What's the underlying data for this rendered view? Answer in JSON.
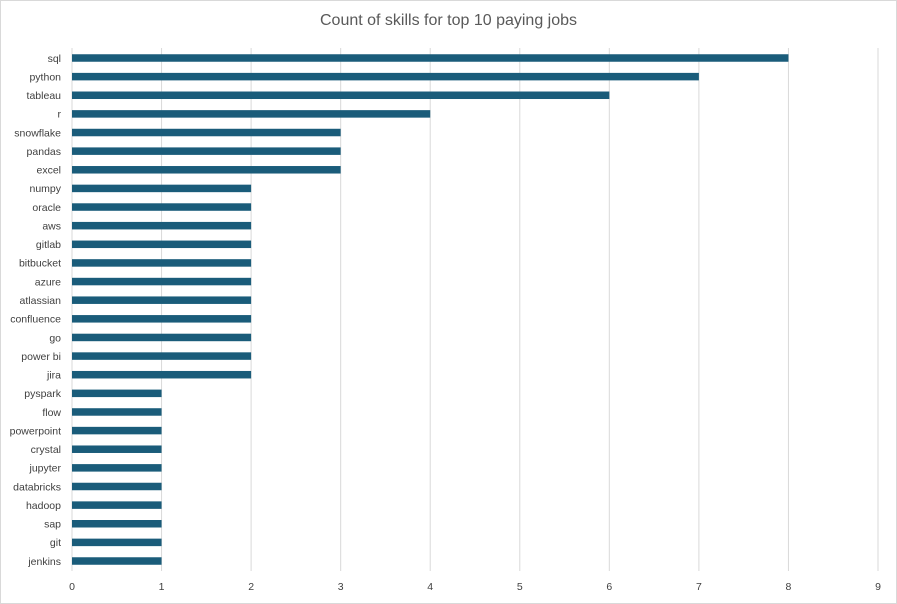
{
  "chart_data": {
    "type": "bar",
    "orientation": "horizontal",
    "title": "Count of skills for top 10 paying jobs",
    "categories": [
      "sql",
      "python",
      "tableau",
      "r",
      "snowflake",
      "pandas",
      "excel",
      "numpy",
      "oracle",
      "aws",
      "gitlab",
      "bitbucket",
      "azure",
      "atlassian",
      "confluence",
      "go",
      "power bi",
      "jira",
      "pyspark",
      "flow",
      "powerpoint",
      "crystal",
      "jupyter",
      "databricks",
      "hadoop",
      "sap",
      "git",
      "jenkins"
    ],
    "values": [
      8,
      7,
      6,
      4,
      3,
      3,
      3,
      2,
      2,
      2,
      2,
      2,
      2,
      2,
      2,
      2,
      2,
      2,
      1,
      1,
      1,
      1,
      1,
      1,
      1,
      1,
      1,
      1
    ],
    "xlim": [
      0,
      9
    ],
    "xticks": [
      0,
      1,
      2,
      3,
      4,
      5,
      6,
      7,
      8,
      9
    ],
    "grid": true,
    "bar_color": "#1a5c7a"
  }
}
